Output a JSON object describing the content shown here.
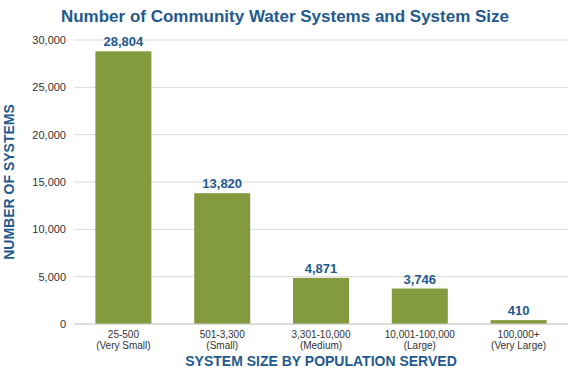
{
  "chart_data": {
    "type": "bar",
    "title": "Number of Community Water Systems and System Size",
    "x_label": "SYSTEM SIZE BY POPULATION SERVED",
    "y_label": "NUMBER OF SYSTEMS",
    "categories": [
      "25-500\n(Very Small)",
      "501-3,300\n(Small)",
      "3,301-10,000\n(Medium)",
      "10,001-100,000\n(Large)",
      "100,000+\n(Very Large)"
    ],
    "values": [
      28804,
      13820,
      4871,
      3746,
      410
    ],
    "value_labels": [
      "28,804",
      "13,820",
      "4,871",
      "3,746",
      "410"
    ],
    "color": "#849a3e",
    "ylim": [
      0,
      30000
    ],
    "yticks": [
      0,
      {
        "value": 5000,
        "label": "5,000"
      },
      {
        "value": 10000,
        "label": "10,000"
      },
      {
        "value": 15000,
        "label": "15,000"
      },
      {
        "value": 20000,
        "label": "20,000"
      },
      {
        "value": 25000,
        "label": "25,000"
      },
      {
        "value": 30000,
        "label": "30,000"
      }
    ],
    "grid": true,
    "data_labels": true
  }
}
